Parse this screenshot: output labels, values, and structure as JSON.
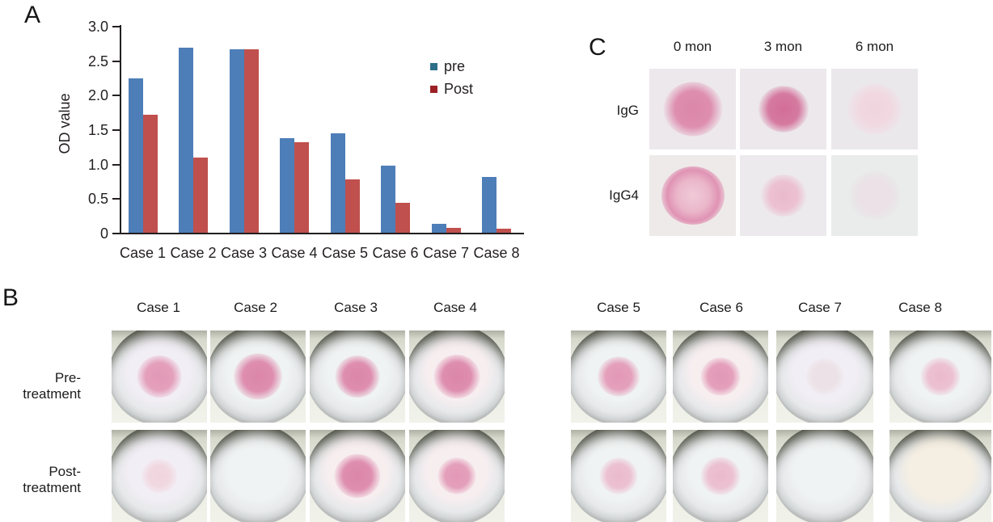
{
  "panels": {
    "a": "A",
    "b": "B",
    "c": "C"
  },
  "chart_data": {
    "type": "bar",
    "title": "",
    "xlabel": "",
    "ylabel": "OD value",
    "ylim": [
      0,
      3.0
    ],
    "yticks": [
      {
        "label": "3.0",
        "value": 3.0
      },
      {
        "label": "2.5",
        "value": 2.5
      },
      {
        "label": "2.0",
        "value": 2.0
      },
      {
        "label": "1.5",
        "value": 1.5
      },
      {
        "label": "1.0",
        "value": 1.0
      },
      {
        "label": "0.5",
        "value": 0.5
      },
      {
        "label": "0",
        "value": 0
      }
    ],
    "categories": [
      "Case 1",
      "Case 2",
      "Case 3",
      "Case 4",
      "Case 5",
      "Case 6",
      "Case 7",
      "Case 8"
    ],
    "series": [
      {
        "name": "pre",
        "bar_color": "#4d7eb8",
        "legend_color": "#2c6e88",
        "values": [
          2.25,
          2.7,
          2.67,
          1.38,
          1.45,
          0.98,
          0.14,
          0.82
        ]
      },
      {
        "name": "Post",
        "bar_color": "#c0504d",
        "legend_color": "#9c2025",
        "values": [
          1.72,
          1.1,
          2.67,
          1.33,
          0.78,
          0.44,
          0.08,
          0.07
        ]
      }
    ],
    "grid": false,
    "legend_position": "upper right",
    "axis_color": "#231f20"
  },
  "panel_c": {
    "col_headers": [
      "0 mon",
      "3 mon",
      "6 mon"
    ],
    "rows": [
      {
        "label": "IgG",
        "cells": [
          {
            "col": "0 mon",
            "spot": "medium-strong",
            "size": 56,
            "bg": "#ede8ec"
          },
          {
            "col": "3 mon",
            "spot": "strong",
            "size": 48,
            "bg": "#ece8ec"
          },
          {
            "col": "6 mon",
            "spot": "faint",
            "size": 52,
            "bg": "#ebe8ec"
          }
        ]
      },
      {
        "label": "IgG4",
        "cells": [
          {
            "col": "0 mon",
            "spot": "ring",
            "size": 60,
            "bg": "#eeeae9"
          },
          {
            "col": "3 mon",
            "spot": "light",
            "size": 44,
            "bg": "#edeaee"
          },
          {
            "col": "6 mon",
            "spot": "very-faint",
            "size": 50,
            "bg": "#e9eceb"
          }
        ]
      }
    ]
  },
  "panel_b": {
    "groups": [
      [
        "Case 1",
        "Case 2",
        "Case 3",
        "Case 4"
      ],
      [
        "Case 5",
        "Case 6",
        "Case 7",
        "Case 8"
      ]
    ],
    "rows": [
      {
        "label": "Pre-treatment",
        "cells": [
          {
            "case": "Case 1",
            "spot": "medium",
            "size": 42,
            "tint": "lavender"
          },
          {
            "case": "Case 2",
            "spot": "medium-strong",
            "size": 46,
            "tint": "blue"
          },
          {
            "case": "Case 3",
            "spot": "medium-strong",
            "size": 42,
            "tint": "blue"
          },
          {
            "case": "Case 4",
            "spot": "medium-strong",
            "size": 44,
            "tint": "pink"
          },
          {
            "case": "Case 5",
            "spot": "medium",
            "size": 40,
            "tint": "blue"
          },
          {
            "case": "Case 6",
            "spot": "medium",
            "size": 38,
            "tint": "pink"
          },
          {
            "case": "Case 7",
            "spot": "very-faint",
            "size": 36,
            "tint": "lavender"
          },
          {
            "case": "Case 8",
            "spot": "light",
            "size": 38,
            "tint": "blue"
          }
        ]
      },
      {
        "label": "Post-treatment",
        "cells": [
          {
            "case": "Case 1",
            "spot": "faint",
            "size": 34,
            "tint": "lavender"
          },
          {
            "case": "Case 2",
            "spot": "none",
            "size": 0,
            "tint": "blue"
          },
          {
            "case": "Case 3",
            "spot": "medium-strong",
            "size": 44,
            "tint": "pink"
          },
          {
            "case": "Case 4",
            "spot": "medium",
            "size": 36,
            "tint": "pink"
          },
          {
            "case": "Case 5",
            "spot": "light",
            "size": 36,
            "tint": "blue"
          },
          {
            "case": "Case 6",
            "spot": "light",
            "size": 38,
            "tint": "blue"
          },
          {
            "case": "Case 7",
            "spot": "none",
            "size": 0,
            "tint": "blue"
          },
          {
            "case": "Case 8",
            "spot": "none",
            "size": 0,
            "tint": "warm"
          }
        ]
      }
    ]
  }
}
